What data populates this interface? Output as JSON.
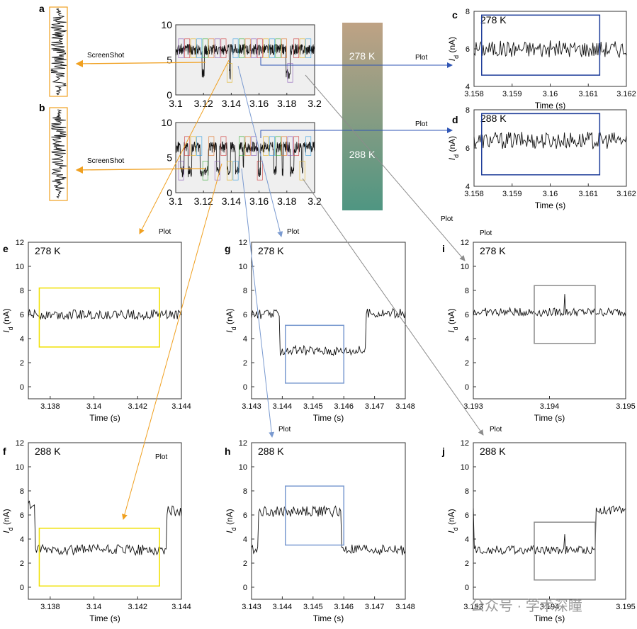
{
  "figure": {
    "watermark": "公众号 · 学术深瞳",
    "screenshot_label": "ScreenShot",
    "plot_label": "Plot",
    "gradient": {
      "top_label": "278 K",
      "bottom_label": "288 K",
      "top_color": "#bfa284",
      "bottom_color": "#4f9682"
    }
  },
  "chart_data": [
    {
      "id": "overview_278",
      "type": "line",
      "title": "",
      "xlabel": "",
      "ylabel": "",
      "xlim": [
        3.1,
        3.2
      ],
      "ylim": [
        0,
        10
      ],
      "xticks": [
        "3.1",
        "3.12",
        "3.14",
        "3.16",
        "3.18",
        "3.2"
      ],
      "yticks": [
        "0",
        "5",
        "10"
      ],
      "high_level": 6.5,
      "low_level": 3.0,
      "low_intervals": [
        [
          3.119,
          3.1205
        ],
        [
          3.1385,
          3.1395
        ],
        [
          3.1795,
          3.1825
        ]
      ],
      "background": "#efefef"
    },
    {
      "id": "overview_288",
      "type": "line",
      "title": "",
      "xlabel": "",
      "ylabel": "",
      "xlim": [
        3.1,
        3.2
      ],
      "ylim": [
        0,
        10
      ],
      "xticks": [
        "3.1",
        "3.12",
        "3.14",
        "3.16",
        "3.18",
        "3.2"
      ],
      "yticks": [
        "0",
        "5",
        "10"
      ],
      "high_level": 6.5,
      "low_level": 3.0,
      "low_intervals": [
        [
          3.1035,
          3.106
        ],
        [
          3.109,
          3.1115
        ],
        [
          3.1175,
          3.1235
        ],
        [
          3.1295,
          3.1315
        ],
        [
          3.137,
          3.1395
        ],
        [
          3.143,
          3.1455
        ],
        [
          3.1485,
          3.149
        ],
        [
          3.1595,
          3.161
        ],
        [
          3.1705,
          3.1725
        ],
        [
          3.1765,
          3.1775
        ],
        [
          3.1825,
          3.185
        ],
        [
          3.1905,
          3.1915
        ]
      ],
      "background": "#efefef"
    },
    {
      "id": "a",
      "panel": "a",
      "type": "line",
      "note": "zoomed trace",
      "high_level": 6.5
    },
    {
      "id": "b",
      "panel": "b",
      "type": "line",
      "note": "zoomed trace",
      "high_level": 5.5
    },
    {
      "id": "c",
      "panel": "c",
      "type": "line",
      "temperature": "278 K",
      "xlabel": "Time (s)",
      "ylabel": "Id (nA)",
      "xlim": [
        3.158,
        3.162
      ],
      "ylim": [
        4,
        8
      ],
      "xticks": [
        "3.158",
        "3.159",
        "3.16",
        "3.161",
        "3.162"
      ],
      "yticks": [
        "4",
        "6",
        "8"
      ],
      "levels": [
        [
          3.158,
          3.162,
          6.0
        ]
      ],
      "noise": 0.45,
      "box": {
        "x": [
          3.1582,
          3.1613
        ],
        "y": [
          4.6,
          7.8
        ],
        "color": "#1f3e9a"
      }
    },
    {
      "id": "d",
      "panel": "d",
      "type": "line",
      "temperature": "288 K",
      "xlabel": "Time (s)",
      "ylabel": "Id (nA)",
      "xlim": [
        3.158,
        3.162
      ],
      "ylim": [
        4,
        8
      ],
      "xticks": [
        "3.158",
        "3.159",
        "3.16",
        "3.161",
        "3.162"
      ],
      "yticks": [
        "4",
        "6",
        "8"
      ],
      "levels": [
        [
          3.158,
          3.162,
          6.4
        ]
      ],
      "noise": 0.45,
      "box": {
        "x": [
          3.1582,
          3.1613
        ],
        "y": [
          4.6,
          7.8
        ],
        "color": "#1f3e9a"
      }
    },
    {
      "id": "e",
      "panel": "e",
      "type": "line",
      "temperature": "278 K",
      "xlabel": "Time (s)",
      "ylabel": "Id (nA)",
      "xlim": [
        3.137,
        3.144
      ],
      "ylim": [
        -1,
        12
      ],
      "xticks": [
        "3.138",
        "3.14",
        "3.142",
        "3.144"
      ],
      "xtick_values": [
        3.138,
        3.14,
        3.142,
        3.144
      ],
      "yticks": [
        "0",
        "2",
        "4",
        "6",
        "8",
        "10",
        "12"
      ],
      "levels": [
        [
          3.137,
          3.144,
          6.0
        ]
      ],
      "noise": 0.4,
      "box": {
        "x": [
          3.1375,
          3.143
        ],
        "y": [
          3.3,
          8.2
        ],
        "color": "#f0e000"
      }
    },
    {
      "id": "f",
      "panel": "f",
      "type": "line",
      "temperature": "288 K",
      "xlabel": "Time (s)",
      "ylabel": "Id (nA)",
      "xlim": [
        3.137,
        3.144
      ],
      "ylim": [
        -1,
        12
      ],
      "xticks": [
        "3.138",
        "3.14",
        "3.142",
        "3.144"
      ],
      "xtick_values": [
        3.138,
        3.14,
        3.142,
        3.144
      ],
      "yticks": [
        "0",
        "2",
        "4",
        "6",
        "8",
        "10",
        "12"
      ],
      "levels": [
        [
          3.137,
          3.1373,
          6.8
        ],
        [
          3.1373,
          3.1433,
          3.1
        ],
        [
          3.1433,
          3.144,
          6.3
        ]
      ],
      "noise": 0.45,
      "box": {
        "x": [
          3.1375,
          3.143
        ],
        "y": [
          0.1,
          4.9
        ],
        "color": "#f0e000"
      }
    },
    {
      "id": "g",
      "panel": "g",
      "type": "line",
      "temperature": "278 K",
      "xlabel": "Time (s)",
      "ylabel": "Id (nA)",
      "xlim": [
        3.143,
        3.148
      ],
      "ylim": [
        -1,
        12
      ],
      "xticks": [
        "3.143",
        "3.144",
        "3.145",
        "3.146",
        "3.147",
        "3.148"
      ],
      "xtick_values": [
        3.143,
        3.144,
        3.145,
        3.146,
        3.147,
        3.148
      ],
      "yticks": [
        "0",
        "2",
        "4",
        "6",
        "8",
        "10",
        "12"
      ],
      "levels": [
        [
          3.143,
          3.1439,
          6.0
        ],
        [
          3.1439,
          3.1467,
          3.0
        ],
        [
          3.1467,
          3.148,
          6.1
        ]
      ],
      "noise": 0.4,
      "box": {
        "x": [
          3.1441,
          3.146
        ],
        "y": [
          0.3,
          5.1
        ],
        "color": "#7a9ad0"
      }
    },
    {
      "id": "h",
      "panel": "h",
      "type": "line",
      "temperature": "288 K",
      "xlabel": "Time (s)",
      "ylabel": "Id (nA)",
      "xlim": [
        3.143,
        3.148
      ],
      "ylim": [
        -1,
        12
      ],
      "xticks": [
        "3.143",
        "3.144",
        "3.145",
        "3.146",
        "3.147",
        "3.148"
      ],
      "xtick_values": [
        3.143,
        3.144,
        3.145,
        3.146,
        3.147,
        3.148
      ],
      "yticks": [
        "0",
        "2",
        "4",
        "6",
        "8",
        "10",
        "12"
      ],
      "levels": [
        [
          3.143,
          3.1432,
          3.2
        ],
        [
          3.1432,
          3.1459,
          6.3
        ],
        [
          3.1459,
          3.148,
          3.1
        ]
      ],
      "noise": 0.45,
      "box": {
        "x": [
          3.1441,
          3.146
        ],
        "y": [
          3.5,
          8.4
        ],
        "color": "#7a9ad0"
      }
    },
    {
      "id": "i",
      "panel": "i",
      "type": "line",
      "temperature": "278 K",
      "xlabel": "Time (s)",
      "ylabel": "Id (nA)",
      "xlim": [
        3.193,
        3.195
      ],
      "ylim": [
        -1,
        12
      ],
      "xticks": [
        "3.193",
        "3.194",
        "3.195"
      ],
      "xtick_values": [
        3.193,
        3.194,
        3.195
      ],
      "yticks": [
        "0",
        "2",
        "4",
        "6",
        "8",
        "10",
        "12"
      ],
      "levels": [
        [
          3.193,
          3.195,
          6.2
        ]
      ],
      "noise": 0.35,
      "spike": {
        "x": 3.1942,
        "y": 7.7
      },
      "box": {
        "x": [
          3.1938,
          3.1946
        ],
        "y": [
          3.6,
          8.4
        ],
        "color": "#8c8c8c"
      }
    },
    {
      "id": "j",
      "panel": "j",
      "type": "line",
      "temperature": "288 K",
      "xlabel": "Time (s)",
      "ylabel": "Id (nA)",
      "xlim": [
        3.193,
        3.195
      ],
      "ylim": [
        -1,
        12
      ],
      "xticks": [
        "3.193",
        "3.194",
        "3.195"
      ],
      "xtick_values": [
        3.193,
        3.194,
        3.195
      ],
      "yticks": [
        "0",
        "2",
        "4",
        "6",
        "8",
        "10",
        "12"
      ],
      "levels": [
        [
          3.193,
          3.19301,
          6.5
        ],
        [
          3.19301,
          3.1946,
          3.1
        ],
        [
          3.1946,
          3.195,
          6.4
        ]
      ],
      "noise": 0.35,
      "spike": {
        "x": 3.1942,
        "y": 4.4
      },
      "box": {
        "x": [
          3.1938,
          3.1946
        ],
        "y": [
          0.6,
          5.4
        ],
        "color": "#8c8c8c"
      }
    }
  ]
}
